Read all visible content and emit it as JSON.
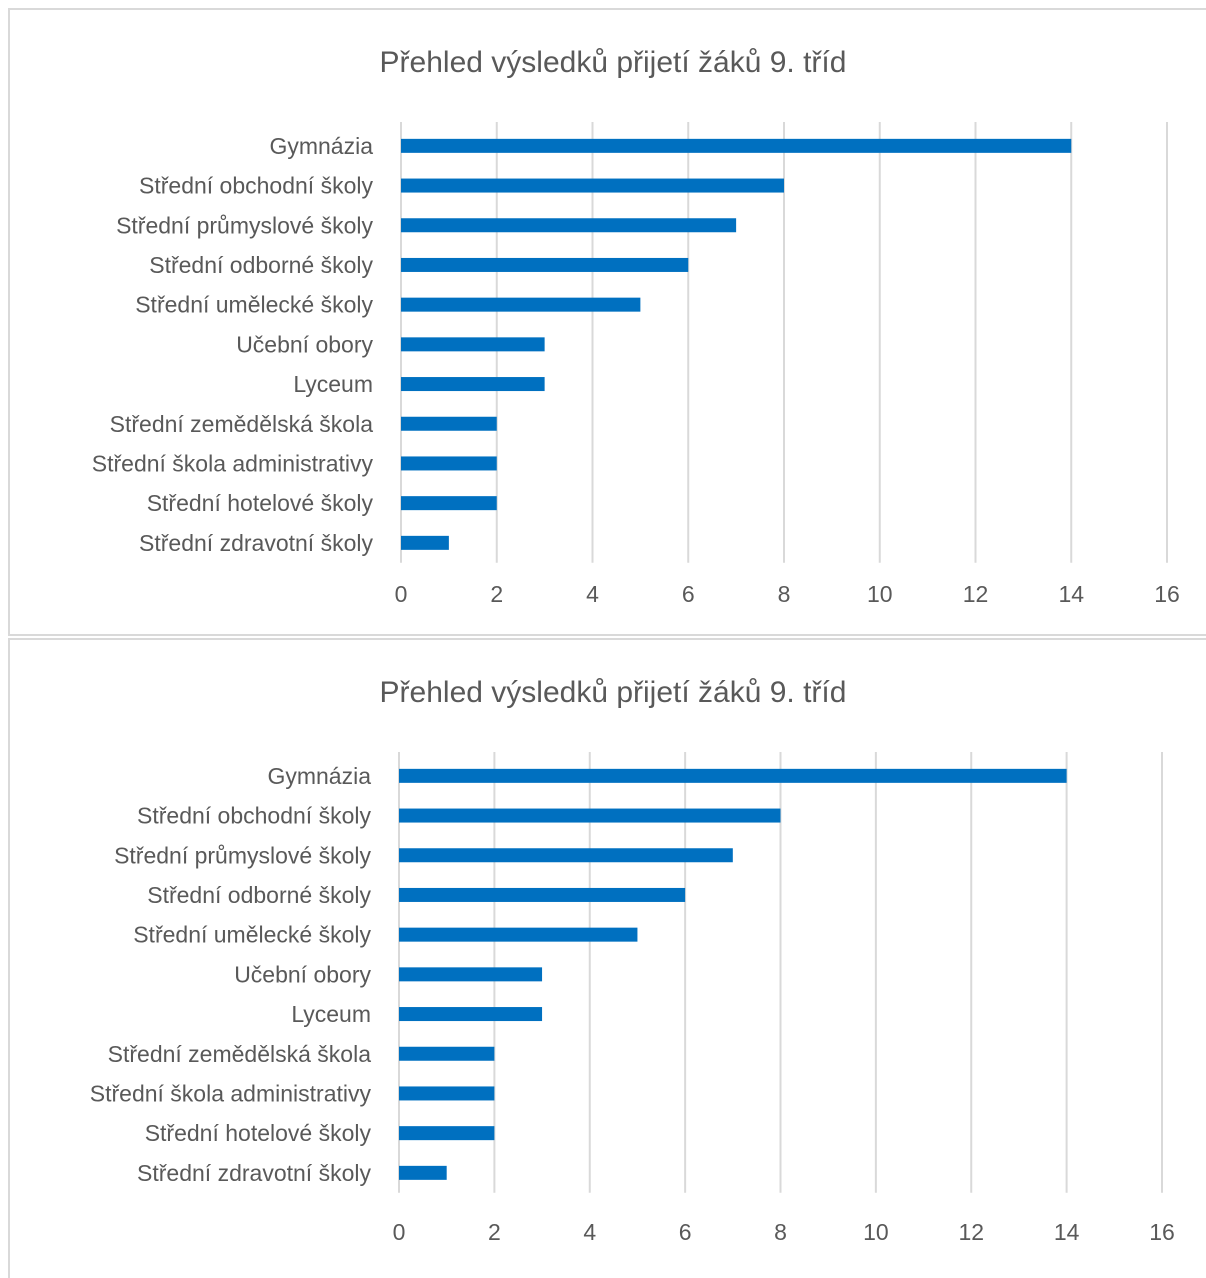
{
  "chart_data": [
    {
      "type": "bar",
      "orientation": "horizontal",
      "title": "Přehled výsledků přijetí žáků 9. tříd",
      "categories": [
        "Gymnázia",
        "Střední obchodní školy",
        "Střední průmyslové školy",
        "Střední odborné školy",
        "Střední umělecké školy",
        "Učební obory",
        "Lyceum",
        "Střední zemědělská škola",
        "Střední škola administrativy",
        "Střední hotelové školy",
        "Střední zdravotní školy"
      ],
      "values": [
        14,
        8,
        7,
        6,
        5,
        3,
        3,
        2,
        2,
        2,
        1
      ],
      "xlim": [
        0,
        16
      ],
      "xticks": [
        "0",
        "2",
        "4",
        "6",
        "8",
        "10",
        "12",
        "14",
        "16"
      ],
      "grid": true,
      "bar_color": "#0070c0"
    },
    {
      "type": "bar",
      "orientation": "horizontal",
      "title": "Přehled výsledků přijetí žáků 9. tříd",
      "categories": [
        "Gymnázia",
        "Střední obchodní školy",
        "Střední průmyslové školy",
        "Střední odborné školy",
        "Střední umělecké školy",
        "Učební obory",
        "Lyceum",
        "Střední zemědělská škola",
        "Střední škola administrativy",
        "Střední hotelové školy",
        "Střední zdravotní školy"
      ],
      "values": [
        14,
        8,
        7,
        6,
        5,
        3,
        3,
        2,
        2,
        2,
        1
      ],
      "xlim": [
        0,
        16
      ],
      "xticks": [
        "0",
        "2",
        "4",
        "6",
        "8",
        "10",
        "12",
        "14",
        "16"
      ],
      "grid": true,
      "bar_color": "#0070c0"
    }
  ]
}
